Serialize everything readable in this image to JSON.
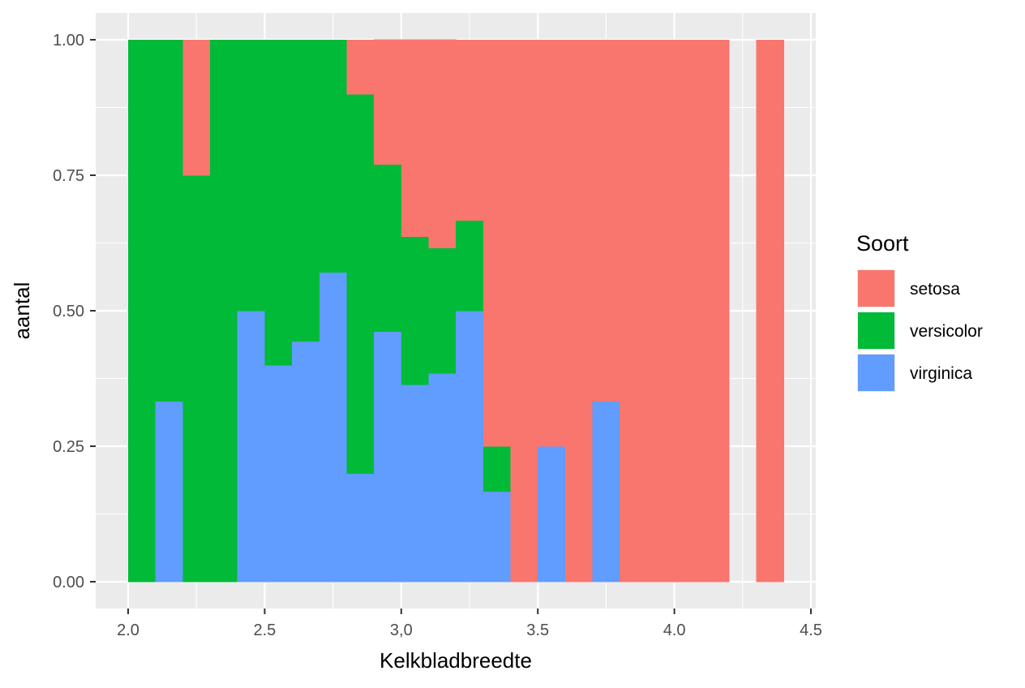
{
  "chart_data": {
    "type": "bar",
    "subtype": "stacked-fill-histogram",
    "title": "",
    "xlabel": "Kelkbladbreedte",
    "ylabel": "aantal",
    "xlim": [
      2.0,
      4.5
    ],
    "ylim": [
      0,
      1
    ],
    "bin_width": 0.1,
    "x_ticks": [
      2.0,
      2.5,
      3.0,
      3.5,
      4.0,
      4.5
    ],
    "x_tick_labels": [
      "2.0",
      "2.5",
      "3,0",
      "3.5",
      "4.0",
      "4.5"
    ],
    "y_ticks": [
      0,
      0.25,
      0.5,
      0.75,
      1
    ],
    "y_tick_labels": [
      "0.00",
      "0.25",
      "0.50",
      "0.75",
      "1.00"
    ],
    "grid": true,
    "legend": {
      "title": "Soort",
      "placement": "right",
      "entries": [
        "setosa",
        "versicolor",
        "virginica"
      ]
    },
    "colors": {
      "setosa": "#F8766D",
      "versicolor": "#00BA38",
      "virginica": "#619CFF",
      "panel": "#EBEBEB",
      "grid": "#FFFFFF",
      "tick_text": "#4D4D4D"
    },
    "bins": [
      2.0,
      2.1,
      2.2,
      2.3,
      2.4,
      2.5,
      2.6,
      2.7,
      2.8,
      2.9,
      3.0,
      3.1,
      3.2,
      3.3,
      3.4,
      3.5,
      3.6,
      3.7,
      3.8,
      3.9,
      4.0,
      4.1,
      4.3
    ],
    "series": [
      {
        "name": "virginica",
        "values": [
          0,
          0.333,
          0,
          0,
          0.5,
          0.4,
          0.444,
          0.571,
          0.2,
          0.462,
          0.364,
          0.385,
          0.5,
          0.167,
          0,
          0.25,
          0,
          0.333,
          0,
          0,
          0,
          0,
          0
        ]
      },
      {
        "name": "versicolor",
        "values": [
          1,
          0.667,
          0.75,
          1,
          0.5,
          0.6,
          0.556,
          0.429,
          0.7,
          0.308,
          0.273,
          0.231,
          0.167,
          0.083,
          0,
          0,
          0,
          0,
          0,
          0,
          0,
          0,
          0
        ]
      },
      {
        "name": "setosa",
        "values": [
          0,
          0,
          0.25,
          0,
          0,
          0,
          0,
          0,
          0.1,
          0.231,
          0.364,
          0.385,
          0.333,
          0.75,
          1,
          0.75,
          1,
          0.667,
          1,
          1,
          1,
          1,
          1
        ]
      }
    ]
  }
}
